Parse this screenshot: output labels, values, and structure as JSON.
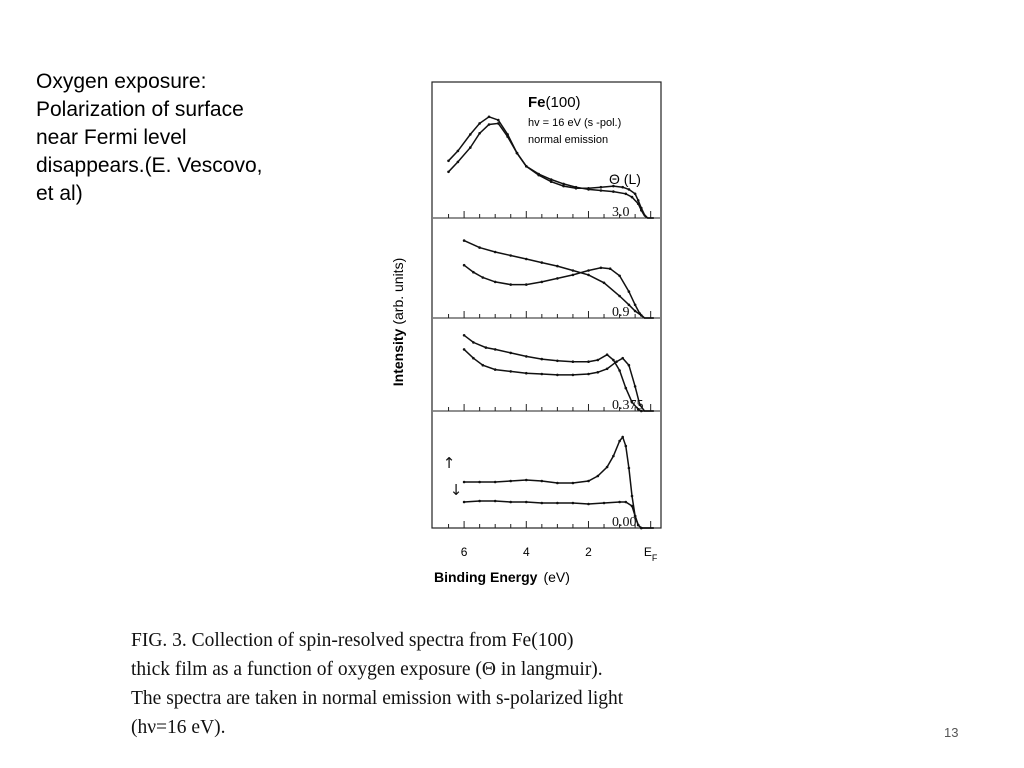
{
  "slide": {
    "text_lines": [
      "Oxygen exposure:",
      "Polarization of surface",
      "near Fermi level",
      "disappears.(E. Vescovo,",
      "et al)"
    ],
    "page_number": "13"
  },
  "figure": {
    "caption_lines": [
      "FIG. 3.  Collection of spin-resolved spectra from Fe(100)",
      "thick film as a function of oxygen exposure (Θ in langmuir).",
      "The spectra are taken in normal emission with s-polarized light",
      "(hν=16 eV)."
    ]
  },
  "chart_data": {
    "type": "line",
    "title_bold": "Fe",
    "title_rest": "(100)",
    "subtitle_lines": [
      "hv = 16 eV  (s -pol.)",
      "normal emission"
    ],
    "panel_header": "Θ (L)",
    "xlabel_bold": "Binding Energy",
    "xlabel_unit": "(eV)",
    "ylabel_bold": "Intensity",
    "ylabel_unit": "(arb. units)",
    "xlim": [
      7.0,
      -0.3
    ],
    "x_ticks": [
      {
        "value": 6,
        "label": "6"
      },
      {
        "value": 4,
        "label": "4"
      },
      {
        "value": 2,
        "label": "2"
      },
      {
        "value": 0,
        "label": "E",
        "sub": "F"
      }
    ],
    "spin_labels": [
      "↑",
      "↓"
    ],
    "panels": [
      {
        "exposure": "3.0",
        "series": [
          {
            "points": [
              [
                6.5,
                0.52
              ],
              [
                6.2,
                0.61
              ],
              [
                5.8,
                0.76
              ],
              [
                5.5,
                0.86
              ],
              [
                5.2,
                0.92
              ],
              [
                4.9,
                0.89
              ],
              [
                4.6,
                0.76
              ],
              [
                4.3,
                0.59
              ],
              [
                4.0,
                0.47
              ],
              [
                3.6,
                0.4
              ],
              [
                3.2,
                0.35
              ],
              [
                2.8,
                0.31
              ],
              [
                2.4,
                0.28
              ],
              [
                2.0,
                0.26
              ],
              [
                1.6,
                0.25
              ],
              [
                1.2,
                0.24
              ],
              [
                0.8,
                0.22
              ],
              [
                0.6,
                0.19
              ],
              [
                0.4,
                0.13
              ],
              [
                0.3,
                0.07
              ],
              [
                0.2,
                0.02
              ],
              [
                0.1,
                0.0
              ],
              [
                -0.1,
                0.0
              ]
            ]
          },
          {
            "points": [
              [
                6.5,
                0.42
              ],
              [
                6.2,
                0.51
              ],
              [
                5.8,
                0.64
              ],
              [
                5.5,
                0.77
              ],
              [
                5.2,
                0.85
              ],
              [
                4.9,
                0.86
              ],
              [
                4.6,
                0.74
              ],
              [
                4.3,
                0.59
              ],
              [
                4.0,
                0.47
              ],
              [
                3.6,
                0.39
              ],
              [
                3.2,
                0.33
              ],
              [
                2.8,
                0.29
              ],
              [
                2.4,
                0.27
              ],
              [
                2.0,
                0.27
              ],
              [
                1.6,
                0.28
              ],
              [
                1.2,
                0.29
              ],
              [
                0.9,
                0.28
              ],
              [
                0.7,
                0.26
              ],
              [
                0.5,
                0.22
              ],
              [
                0.4,
                0.16
              ],
              [
                0.3,
                0.09
              ],
              [
                0.2,
                0.03
              ],
              [
                0.1,
                0.0
              ],
              [
                -0.1,
                0.0
              ]
            ]
          }
        ]
      },
      {
        "exposure": "0.9",
        "series": [
          {
            "points": [
              [
                6.0,
                0.88
              ],
              [
                5.5,
                0.8
              ],
              [
                5.0,
                0.75
              ],
              [
                4.5,
                0.71
              ],
              [
                4.0,
                0.67
              ],
              [
                3.5,
                0.63
              ],
              [
                3.0,
                0.59
              ],
              [
                2.5,
                0.54
              ],
              [
                2.0,
                0.49
              ],
              [
                1.5,
                0.4
              ],
              [
                1.0,
                0.25
              ],
              [
                0.7,
                0.15
              ],
              [
                0.5,
                0.08
              ],
              [
                0.3,
                0.03
              ],
              [
                0.2,
                0.0
              ],
              [
                -0.1,
                0.0
              ]
            ]
          },
          {
            "points": [
              [
                6.0,
                0.6
              ],
              [
                5.7,
                0.52
              ],
              [
                5.4,
                0.46
              ],
              [
                5.0,
                0.41
              ],
              [
                4.5,
                0.38
              ],
              [
                4.0,
                0.38
              ],
              [
                3.5,
                0.41
              ],
              [
                3.0,
                0.45
              ],
              [
                2.5,
                0.49
              ],
              [
                2.0,
                0.54
              ],
              [
                1.6,
                0.57
              ],
              [
                1.3,
                0.56
              ],
              [
                1.0,
                0.48
              ],
              [
                0.7,
                0.3
              ],
              [
                0.5,
                0.15
              ],
              [
                0.35,
                0.05
              ],
              [
                0.2,
                0.0
              ],
              [
                -0.1,
                0.0
              ]
            ]
          }
        ]
      },
      {
        "exposure": "0.375",
        "series": [
          {
            "points": [
              [
                6.0,
                0.86
              ],
              [
                5.7,
                0.78
              ],
              [
                5.3,
                0.72
              ],
              [
                5.0,
                0.7
              ],
              [
                4.5,
                0.66
              ],
              [
                4.0,
                0.62
              ],
              [
                3.5,
                0.59
              ],
              [
                3.0,
                0.57
              ],
              [
                2.5,
                0.56
              ],
              [
                2.0,
                0.56
              ],
              [
                1.7,
                0.58
              ],
              [
                1.4,
                0.64
              ],
              [
                1.2,
                0.58
              ],
              [
                1.0,
                0.46
              ],
              [
                0.8,
                0.26
              ],
              [
                0.6,
                0.1
              ],
              [
                0.4,
                0.02
              ],
              [
                0.3,
                0.0
              ],
              [
                -0.1,
                0.0
              ]
            ]
          },
          {
            "points": [
              [
                6.0,
                0.7
              ],
              [
                5.7,
                0.6
              ],
              [
                5.4,
                0.52
              ],
              [
                5.0,
                0.47
              ],
              [
                4.5,
                0.45
              ],
              [
                4.0,
                0.43
              ],
              [
                3.5,
                0.42
              ],
              [
                3.0,
                0.41
              ],
              [
                2.5,
                0.41
              ],
              [
                2.0,
                0.42
              ],
              [
                1.7,
                0.44
              ],
              [
                1.4,
                0.48
              ],
              [
                1.1,
                0.56
              ],
              [
                0.9,
                0.6
              ],
              [
                0.7,
                0.52
              ],
              [
                0.5,
                0.28
              ],
              [
                0.35,
                0.07
              ],
              [
                0.2,
                0.0
              ],
              [
                -0.1,
                0.0
              ]
            ]
          }
        ]
      },
      {
        "exposure": "0.00",
        "series": [
          {
            "points": [
              [
                6.0,
                0.46
              ],
              [
                5.5,
                0.46
              ],
              [
                5.0,
                0.46
              ],
              [
                4.5,
                0.47
              ],
              [
                4.0,
                0.48
              ],
              [
                3.5,
                0.47
              ],
              [
                3.0,
                0.45
              ],
              [
                2.5,
                0.45
              ],
              [
                2.0,
                0.47
              ],
              [
                1.7,
                0.52
              ],
              [
                1.4,
                0.61
              ],
              [
                1.2,
                0.72
              ],
              [
                1.0,
                0.87
              ],
              [
                0.9,
                0.91
              ],
              [
                0.8,
                0.82
              ],
              [
                0.7,
                0.6
              ],
              [
                0.6,
                0.32
              ],
              [
                0.5,
                0.12
              ],
              [
                0.4,
                0.03
              ],
              [
                0.3,
                0.0
              ],
              [
                -0.1,
                0.0
              ]
            ]
          },
          {
            "points": [
              [
                6.0,
                0.26
              ],
              [
                5.5,
                0.27
              ],
              [
                5.0,
                0.27
              ],
              [
                4.5,
                0.26
              ],
              [
                4.0,
                0.26
              ],
              [
                3.5,
                0.25
              ],
              [
                3.0,
                0.25
              ],
              [
                2.5,
                0.25
              ],
              [
                2.0,
                0.24
              ],
              [
                1.5,
                0.25
              ],
              [
                1.0,
                0.26
              ],
              [
                0.8,
                0.26
              ],
              [
                0.6,
                0.22
              ],
              [
                0.5,
                0.12
              ],
              [
                0.4,
                0.03
              ],
              [
                0.3,
                0.0
              ],
              [
                -0.1,
                0.0
              ]
            ]
          }
        ]
      }
    ]
  }
}
